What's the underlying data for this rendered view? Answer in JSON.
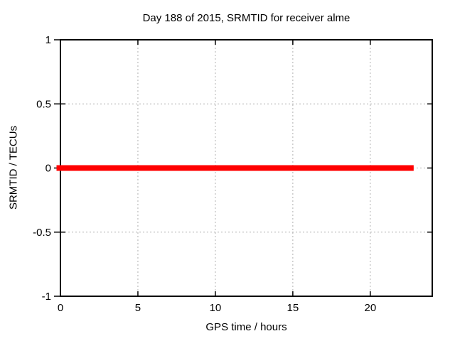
{
  "window": {
    "background": "#ffffff"
  },
  "chart_data": {
    "type": "line",
    "title": "Day 188 of 2015, SRMTID for receiver alme",
    "xlabel": "GPS time / hours",
    "ylabel": "SRMTID / TECUs",
    "xlim": [
      0,
      24
    ],
    "ylim": [
      -1,
      1
    ],
    "xticks": {
      "values": [
        0,
        5,
        10,
        15,
        20
      ],
      "labels": [
        "0",
        "5",
        "10",
        "15",
        "20"
      ]
    },
    "yticks": {
      "values": [
        1,
        0.5,
        0,
        -0.5,
        -1
      ],
      "labels": [
        "1",
        "0.5",
        "0",
        "-0.5",
        "-1"
      ]
    },
    "grid": {
      "enabled": true,
      "x_values": [
        5,
        10,
        15,
        20
      ],
      "y_values": [
        -0.5,
        0,
        0.5
      ],
      "color": "#b0b0b0",
      "style": "dotted"
    },
    "legend": {
      "visible": false
    },
    "series": [
      {
        "name": "SRMTID",
        "color": "#ff0000",
        "line_width": 8,
        "x": [
          0,
          22.8
        ],
        "y": [
          0,
          0
        ]
      }
    ]
  },
  "colors": {
    "axis": "#000000",
    "text": "#000000",
    "grid": "#b0b0b0",
    "series_red": "#ff0000",
    "background": "#ffffff"
  }
}
